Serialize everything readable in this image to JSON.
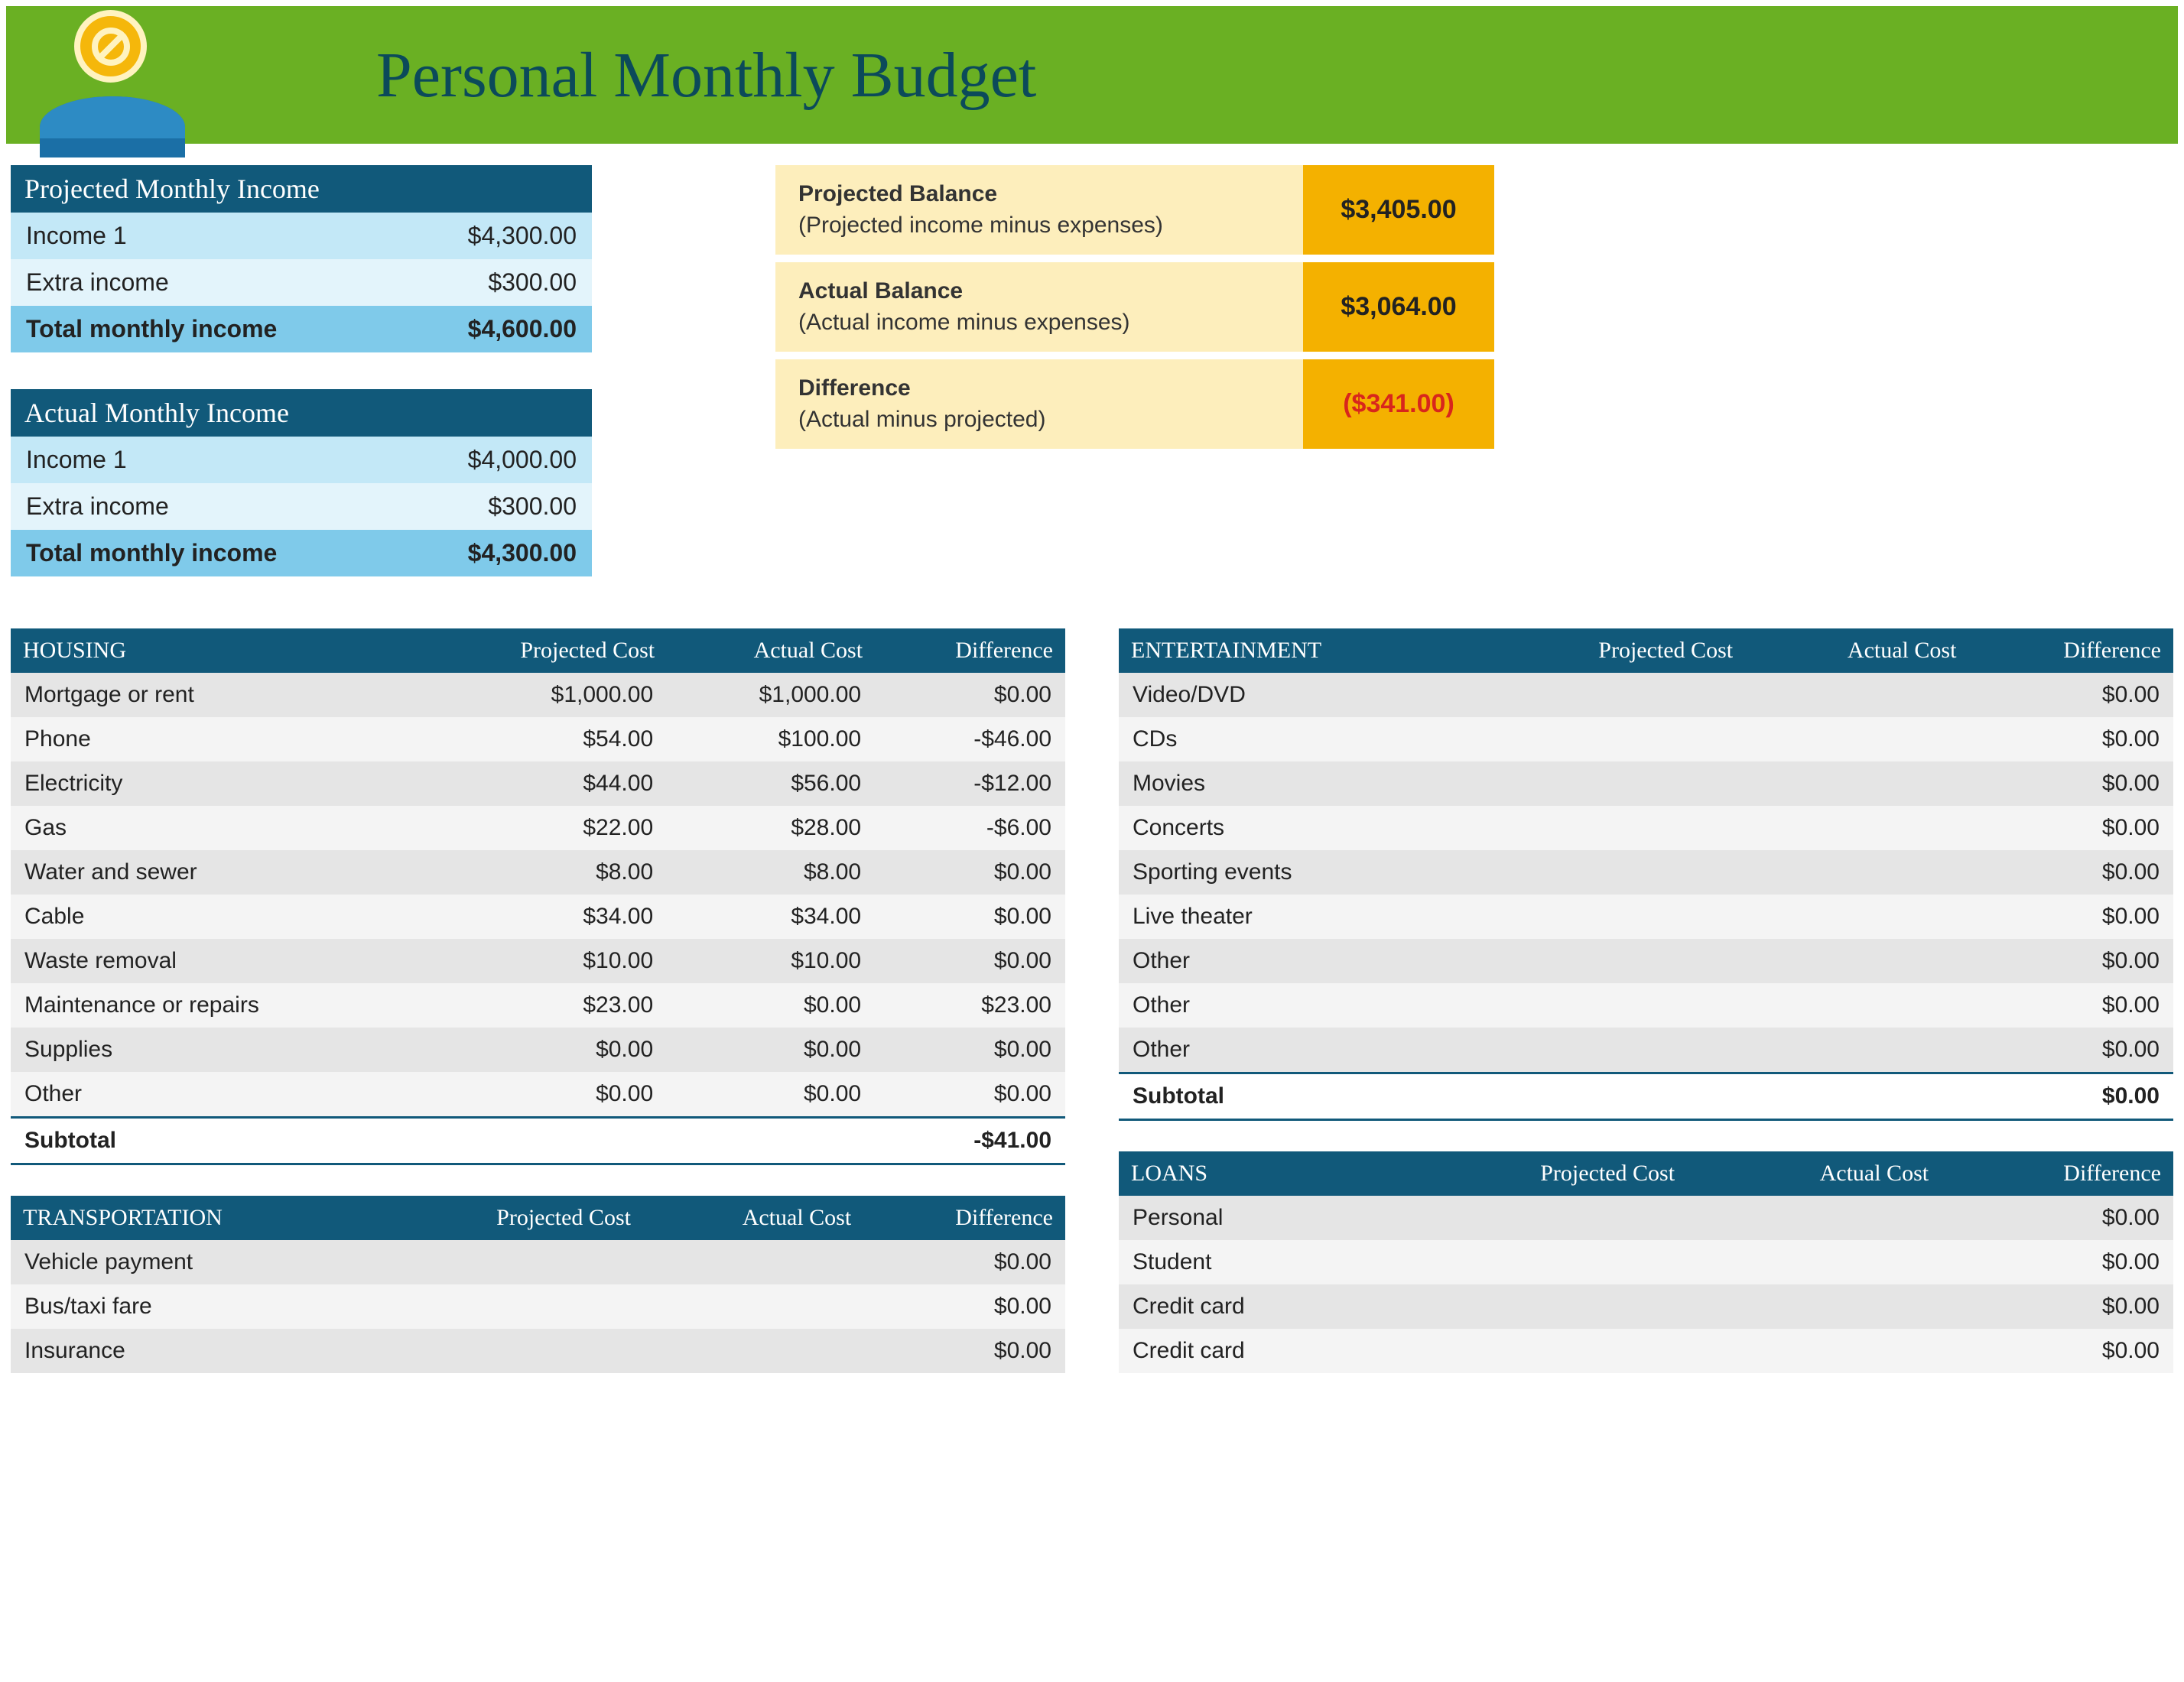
{
  "header": {
    "title": "Personal Monthly Budget",
    "banner_color": "#6ab023",
    "title_color": "#0b4a5a"
  },
  "colors": {
    "table_header_bg": "#11597a",
    "income_row_a": "#c3e8f7",
    "income_row_b": "#e3f4fb",
    "income_total": "#7fcaea",
    "balance_label_bg": "#fdeebc",
    "balance_value_bg": "#f4b100",
    "cat_row_odd": "#e5e5e5",
    "cat_row_even": "#f4f4f4",
    "negative": "#d8261c"
  },
  "projected_income": {
    "title": "Projected Monthly Income",
    "rows": [
      {
        "label": "Income 1",
        "value": "$4,300.00"
      },
      {
        "label": "Extra income",
        "value": "$300.00"
      }
    ],
    "total": {
      "label": "Total monthly income",
      "value": "$4,600.00"
    }
  },
  "actual_income": {
    "title": "Actual Monthly Income",
    "rows": [
      {
        "label": "Income 1",
        "value": "$4,000.00"
      },
      {
        "label": "Extra income",
        "value": "$300.00"
      }
    ],
    "total": {
      "label": "Total monthly income",
      "value": "$4,300.00"
    }
  },
  "balances": [
    {
      "title": "Projected Balance",
      "sub": "(Projected income minus expenses)",
      "value": "$3,405.00",
      "neg": false
    },
    {
      "title": "Actual Balance",
      "sub": "(Actual income minus expenses)",
      "value": "$3,064.00",
      "neg": false
    },
    {
      "title": "Difference",
      "sub": "(Actual minus projected)",
      "value": "($341.00)",
      "neg": true
    }
  ],
  "column_headers": {
    "projected": "Projected Cost",
    "actual": "Actual Cost",
    "diff": "Difference",
    "subtotal": "Subtotal"
  },
  "categories_left": [
    {
      "name": "HOUSING",
      "rows": [
        {
          "label": "Mortgage or rent",
          "projected": "$1,000.00",
          "actual": "$1,000.00",
          "diff": "$0.00"
        },
        {
          "label": "Phone",
          "projected": "$54.00",
          "actual": "$100.00",
          "diff": "-$46.00"
        },
        {
          "label": "Electricity",
          "projected": "$44.00",
          "actual": "$56.00",
          "diff": "-$12.00"
        },
        {
          "label": "Gas",
          "projected": "$22.00",
          "actual": "$28.00",
          "diff": "-$6.00"
        },
        {
          "label": "Water and sewer",
          "projected": "$8.00",
          "actual": "$8.00",
          "diff": "$0.00"
        },
        {
          "label": "Cable",
          "projected": "$34.00",
          "actual": "$34.00",
          "diff": "$0.00"
        },
        {
          "label": "Waste removal",
          "projected": "$10.00",
          "actual": "$10.00",
          "diff": "$0.00"
        },
        {
          "label": "Maintenance or repairs",
          "projected": "$23.00",
          "actual": "$0.00",
          "diff": "$23.00"
        },
        {
          "label": "Supplies",
          "projected": "$0.00",
          "actual": "$0.00",
          "diff": "$0.00"
        },
        {
          "label": "Other",
          "projected": "$0.00",
          "actual": "$0.00",
          "diff": "$0.00"
        }
      ],
      "subtotal": "-$41.00"
    },
    {
      "name": "TRANSPORTATION",
      "rows": [
        {
          "label": "Vehicle payment",
          "projected": "",
          "actual": "",
          "diff": "$0.00"
        },
        {
          "label": "Bus/taxi fare",
          "projected": "",
          "actual": "",
          "diff": "$0.00"
        },
        {
          "label": "Insurance",
          "projected": "",
          "actual": "",
          "diff": "$0.00"
        }
      ],
      "subtotal": null
    }
  ],
  "categories_right": [
    {
      "name": "ENTERTAINMENT",
      "rows": [
        {
          "label": "Video/DVD",
          "projected": "",
          "actual": "",
          "diff": "$0.00"
        },
        {
          "label": "CDs",
          "projected": "",
          "actual": "",
          "diff": "$0.00"
        },
        {
          "label": "Movies",
          "projected": "",
          "actual": "",
          "diff": "$0.00"
        },
        {
          "label": "Concerts",
          "projected": "",
          "actual": "",
          "diff": "$0.00"
        },
        {
          "label": "Sporting events",
          "projected": "",
          "actual": "",
          "diff": "$0.00"
        },
        {
          "label": "Live theater",
          "projected": "",
          "actual": "",
          "diff": "$0.00"
        },
        {
          "label": "Other",
          "projected": "",
          "actual": "",
          "diff": "$0.00"
        },
        {
          "label": "Other",
          "projected": "",
          "actual": "",
          "diff": "$0.00"
        },
        {
          "label": "Other",
          "projected": "",
          "actual": "",
          "diff": "$0.00"
        }
      ],
      "subtotal": "$0.00"
    },
    {
      "name": "LOANS",
      "rows": [
        {
          "label": "Personal",
          "projected": "",
          "actual": "",
          "diff": "$0.00"
        },
        {
          "label": "Student",
          "projected": "",
          "actual": "",
          "diff": "$0.00"
        },
        {
          "label": "Credit card",
          "projected": "",
          "actual": "",
          "diff": "$0.00"
        },
        {
          "label": "Credit card",
          "projected": "",
          "actual": "",
          "diff": "$0.00"
        }
      ],
      "subtotal": null
    }
  ]
}
